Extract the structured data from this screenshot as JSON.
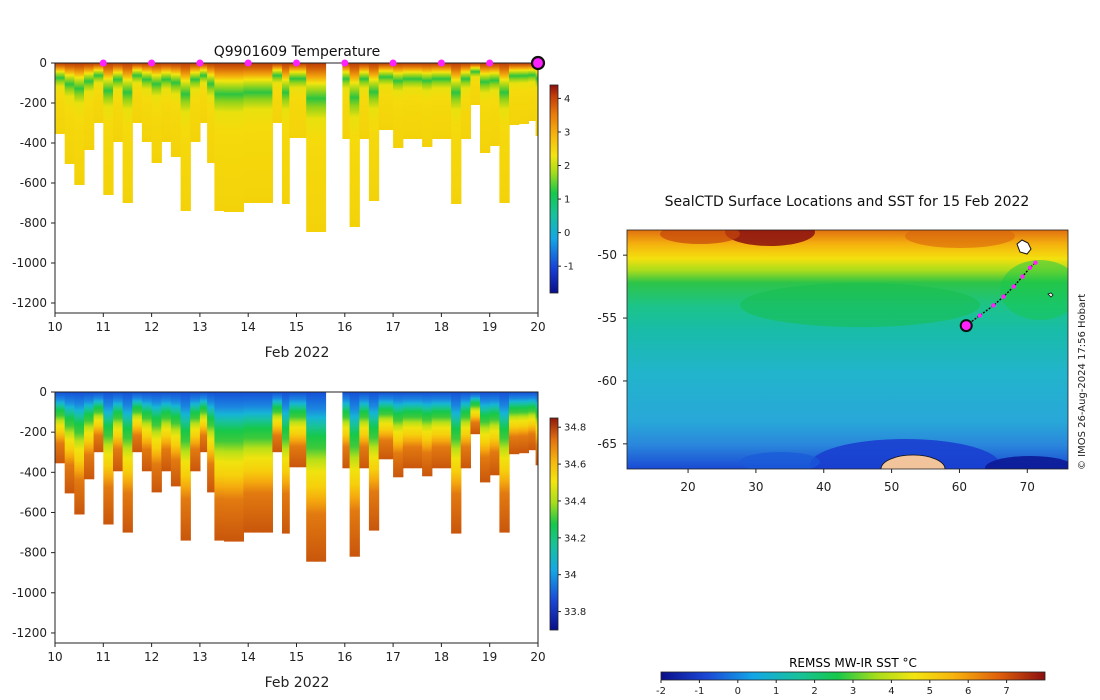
{
  "chart_data": [
    {
      "type": "heatmap",
      "title": "Q9901609  Temperature",
      "variable": "temperature",
      "xlabel": "Feb 2022",
      "ylabel": "",
      "xlim": [
        10,
        20
      ],
      "ylim": [
        -1250,
        0
      ],
      "x_ticks": [
        "10",
        "11",
        "12",
        "13",
        "14",
        "15",
        "16",
        "17",
        "18",
        "19",
        "20"
      ],
      "y_ticks": [
        "0",
        "-200",
        "-400",
        "-600",
        "-800",
        "-1000",
        "-1200"
      ],
      "colorbar": {
        "range": [
          -1.8,
          4.4
        ],
        "ticks": [
          "4",
          "3",
          "2",
          "1",
          "0",
          "-1"
        ]
      },
      "surface_markers_days": [
        11,
        12,
        13,
        14,
        15,
        16,
        17,
        18,
        19
      ],
      "current_marker_day": 20,
      "profiles": [
        {
          "day": 10.0,
          "depth": 355
        },
        {
          "day": 10.2,
          "depth": 505
        },
        {
          "day": 10.4,
          "depth": 610
        },
        {
          "day": 10.6,
          "depth": 435
        },
        {
          "day": 10.8,
          "depth": 300
        },
        {
          "day": 11.0,
          "depth": 660
        },
        {
          "day": 11.2,
          "depth": 395
        },
        {
          "day": 11.4,
          "depth": 700
        },
        {
          "day": 11.6,
          "depth": 300
        },
        {
          "day": 11.8,
          "depth": 395
        },
        {
          "day": 12.0,
          "depth": 500
        },
        {
          "day": 12.2,
          "depth": 395
        },
        {
          "day": 12.4,
          "depth": 470
        },
        {
          "day": 12.6,
          "depth": 740
        },
        {
          "day": 12.8,
          "depth": 395
        },
        {
          "day": 13.0,
          "depth": 300
        },
        {
          "day": 13.15,
          "depth": 500
        },
        {
          "day": 13.3,
          "depth": 740
        },
        {
          "day": 13.5,
          "depth": 745
        },
        {
          "day": 13.7,
          "depth": 745
        },
        {
          "day": 13.9,
          "depth": 700
        },
        {
          "day": 14.1,
          "depth": 700
        },
        {
          "day": 14.3,
          "depth": 700
        },
        {
          "day": 14.5,
          "depth": 300
        },
        {
          "day": 14.7,
          "depth": 705
        },
        {
          "day": 14.85,
          "depth": 375
        },
        {
          "day": 15.0,
          "depth": 375
        },
        {
          "day": 15.2,
          "depth": 845
        },
        {
          "day": 15.4,
          "depth": 845
        },
        {
          "day": 15.6,
          "depth": -1
        },
        {
          "day": 15.8,
          "depth": -1
        },
        {
          "day": 15.95,
          "depth": 380
        },
        {
          "day": 16.1,
          "depth": 820
        },
        {
          "day": 16.3,
          "depth": 380
        },
        {
          "day": 16.5,
          "depth": 690
        },
        {
          "day": 16.7,
          "depth": 335
        },
        {
          "day": 16.85,
          "depth": 335
        },
        {
          "day": 17.0,
          "depth": 425
        },
        {
          "day": 17.2,
          "depth": 380
        },
        {
          "day": 17.4,
          "depth": 380
        },
        {
          "day": 17.6,
          "depth": 420
        },
        {
          "day": 17.8,
          "depth": 380
        },
        {
          "day": 18.0,
          "depth": 380
        },
        {
          "day": 18.2,
          "depth": 705
        },
        {
          "day": 18.4,
          "depth": 380
        },
        {
          "day": 18.6,
          "depth": 210
        },
        {
          "day": 18.8,
          "depth": 450
        },
        {
          "day": 19.0,
          "depth": 415
        },
        {
          "day": 19.2,
          "depth": 700
        },
        {
          "day": 19.4,
          "depth": 310
        },
        {
          "day": 19.6,
          "depth": 305
        },
        {
          "day": 19.8,
          "depth": 290
        },
        {
          "day": 19.95,
          "depth": 365
        }
      ]
    },
    {
      "type": "heatmap",
      "title": "",
      "variable": "salinity",
      "xlabel": "Feb 2022",
      "ylabel": "",
      "xlim": [
        10,
        20
      ],
      "ylim": [
        -1250,
        0
      ],
      "x_ticks": [
        "10",
        "11",
        "12",
        "13",
        "14",
        "15",
        "16",
        "17",
        "18",
        "19",
        "20"
      ],
      "y_ticks": [
        "0",
        "-200",
        "-400",
        "-600",
        "-800",
        "-1000",
        "-1200"
      ],
      "colorbar": {
        "range": [
          33.7,
          34.85
        ],
        "ticks": [
          "34.8",
          "34.6",
          "34.4",
          "34.2",
          "34",
          "33.8"
        ]
      }
    },
    {
      "type": "heatmap",
      "title": "SealCTD Surface Locations and SST for 15 Feb 2022",
      "variable": "sea surface temperature",
      "xlabel": "",
      "ylabel": "",
      "xlim": [
        11,
        76
      ],
      "ylim": [
        -67,
        -48
      ],
      "x_ticks": [
        "20",
        "30",
        "40",
        "50",
        "60",
        "70"
      ],
      "y_ticks": [
        "-50",
        "-55",
        "-60",
        "-65"
      ],
      "colorbar": {
        "label": "REMSS MW-IR SST °C",
        "range": [
          -2,
          8
        ],
        "ticks": [
          "-2",
          "-1",
          "0",
          "1",
          "2",
          "3",
          "4",
          "5",
          "6",
          "7"
        ]
      },
      "track": [
        {
          "lon": 61.0,
          "lat": -55.6
        },
        {
          "lon": 63.0,
          "lat": -54.8
        },
        {
          "lon": 65.0,
          "lat": -54.0
        },
        {
          "lon": 66.5,
          "lat": -53.3
        },
        {
          "lon": 68.0,
          "lat": -52.5
        },
        {
          "lon": 69.3,
          "lat": -51.7
        },
        {
          "lon": 70.4,
          "lat": -51.0
        },
        {
          "lon": 71.2,
          "lat": -50.6
        }
      ],
      "current_location": {
        "lon": 61.0,
        "lat": -55.6
      },
      "credit": "© IMOS 26-Aug-2024 17:56 Hobart"
    }
  ]
}
